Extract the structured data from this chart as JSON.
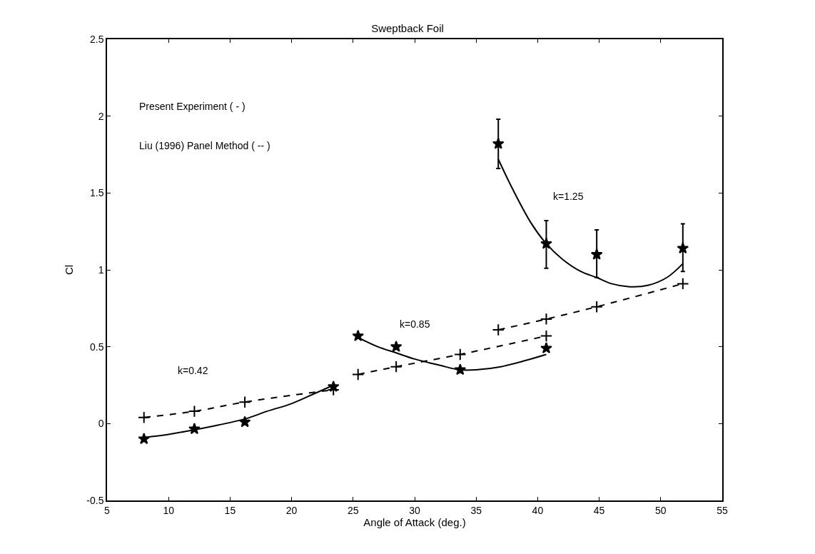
{
  "chart_data": {
    "type": "line",
    "title": "Sweptback Foil",
    "xlabel": "Angle of Attack (deg.)",
    "ylabel": "Cl",
    "xlim": [
      5,
      55
    ],
    "xticks": [
      5,
      10,
      15,
      20,
      25,
      30,
      35,
      40,
      45,
      50,
      55
    ],
    "ylim": [
      -0.5,
      2.5
    ],
    "yticks": [
      -0.5,
      0,
      0.5,
      1,
      1.5,
      2,
      2.5
    ],
    "annotations": [
      "Present Experiment ( - )",
      "Liu (1996) Panel Method ( -- )",
      "k=0.42",
      "k=0.85",
      "k=1.25"
    ],
    "series": [
      {
        "type": "scatter",
        "marker": "star",
        "color": "#000000",
        "x": [
          8.0,
          12.1,
          16.2,
          23.4,
          25.4,
          28.5,
          33.7,
          40.7
        ],
        "values": [
          -0.1,
          -0.035,
          0.01,
          0.24,
          0.57,
          0.5,
          0.35,
          0.49
        ]
      },
      {
        "type": "scatter",
        "marker": "star",
        "color": "#000000",
        "x": [
          36.8,
          40.7,
          44.8,
          51.8
        ],
        "values": [
          1.82,
          1.17,
          1.1,
          1.14
        ],
        "errors": [
          [
            1.66,
            1.98
          ],
          [
            1.01,
            1.32
          ],
          [
            0.95,
            1.26
          ],
          [
            0.99,
            1.3
          ]
        ]
      },
      {
        "marker": "none",
        "line_style": "solid",
        "color": "#000000",
        "x": [
          8.0,
          10,
          12.1,
          14,
          16.2,
          18,
          20,
          22,
          23.4
        ],
        "values": [
          -0.09,
          -0.07,
          -0.04,
          -0.01,
          0.03,
          0.08,
          0.13,
          0.2,
          0.25
        ]
      },
      {
        "marker": "none",
        "line_style": "solid",
        "color": "#000000",
        "x": [
          25.4,
          27,
          28.5,
          30,
          32,
          33.7,
          35,
          37,
          39,
          40.7
        ],
        "values": [
          0.56,
          0.5,
          0.46,
          0.42,
          0.38,
          0.35,
          0.35,
          0.37,
          0.41,
          0.45
        ]
      },
      {
        "marker": "none",
        "line_style": "solid",
        "color": "#000000",
        "x": [
          36.8,
          38,
          39.5,
          40.7,
          42,
          43.5,
          44.8,
          46,
          47.5,
          49,
          50.5,
          51.8
        ],
        "values": [
          1.72,
          1.52,
          1.3,
          1.17,
          1.07,
          0.99,
          0.95,
          0.91,
          0.89,
          0.9,
          0.95,
          1.04
        ]
      },
      {
        "marker": "cross",
        "line_style": "dashed",
        "color": "#000000",
        "x": [
          8.0,
          12.1,
          16.2,
          23.4
        ],
        "values": [
          0.04,
          0.08,
          0.14,
          0.22
        ]
      },
      {
        "marker": "cross",
        "line_style": "dashed",
        "color": "#000000",
        "x": [
          25.4,
          28.5,
          33.7,
          40.7
        ],
        "values": [
          0.32,
          0.37,
          0.45,
          0.57
        ]
      },
      {
        "marker": "cross",
        "line_style": "dashed",
        "color": "#000000",
        "x": [
          36.8,
          40.7,
          44.8,
          51.8
        ],
        "values": [
          0.61,
          0.68,
          0.76,
          0.91
        ]
      }
    ]
  }
}
